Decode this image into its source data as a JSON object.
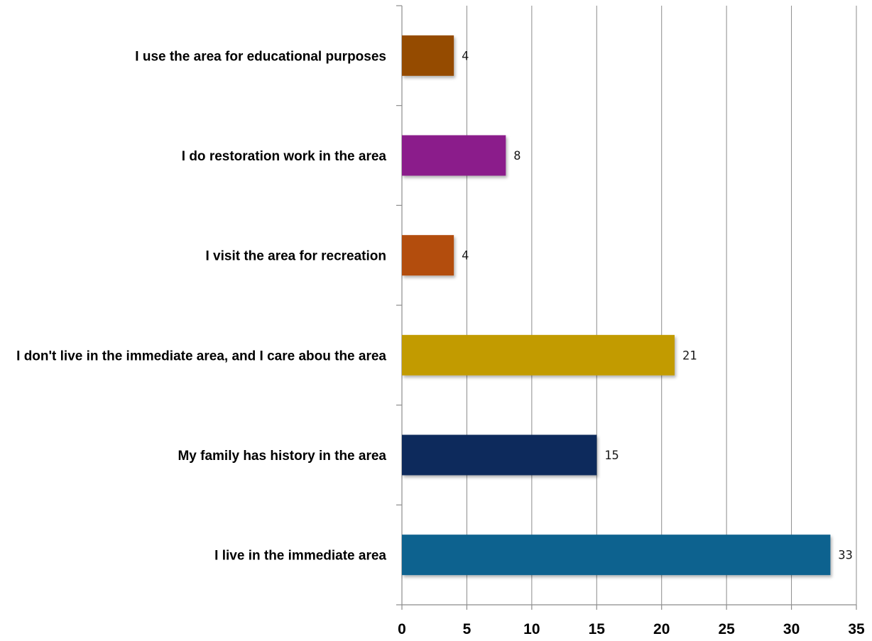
{
  "chart_data": {
    "type": "bar",
    "orientation": "horizontal",
    "categories": [
      "I use the area for educational purposes",
      "I do restoration work in the area",
      "I visit the area for recreation",
      "I don't live in the immediate area, and I care abou the area",
      "My family has history in the area",
      "I live in the immediate area"
    ],
    "values": [
      4,
      8,
      4,
      21,
      15,
      33
    ],
    "colors": [
      "#954b00",
      "#8b1a8b",
      "#b34d0e",
      "#c29b00",
      "#08295c",
      "#11628f"
    ],
    "data_labels": [
      "4",
      "8",
      "4",
      "21",
      "15",
      "33"
    ],
    "xlim": [
      0,
      35
    ],
    "xticks": [
      0,
      5,
      10,
      15,
      20,
      25,
      30,
      35
    ],
    "xtick_labels": [
      "0",
      "5",
      "10",
      "15",
      "20",
      "25",
      "30",
      "35"
    ],
    "title": "",
    "xlabel": "",
    "ylabel": "",
    "grid": "vertical",
    "legend": "none"
  }
}
